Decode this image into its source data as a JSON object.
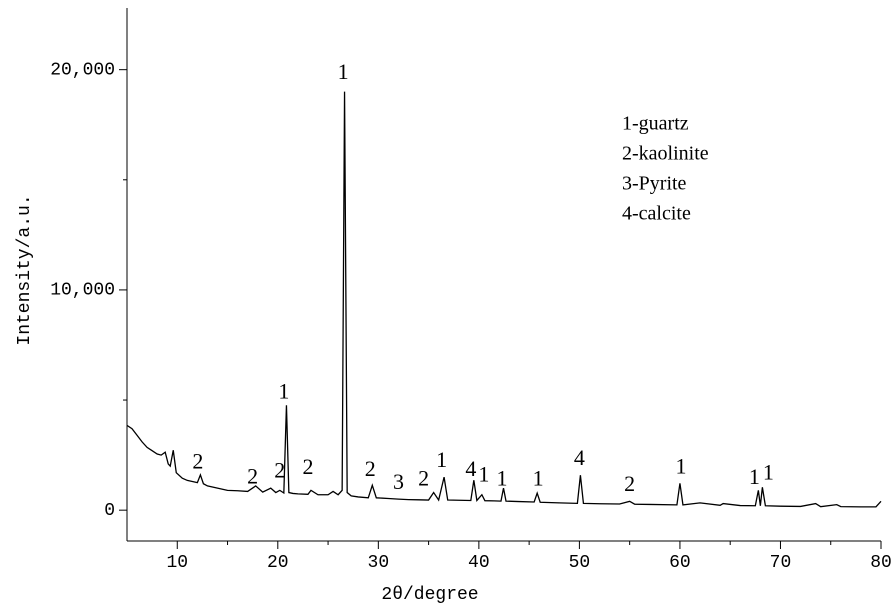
{
  "chart_data": {
    "type": "line",
    "xlabel": "2θ/degree",
    "ylabel": "Intensity/a.u.",
    "xlim": [
      5,
      80
    ],
    "ylim": [
      -1400,
      22800
    ],
    "xticks": [
      10,
      20,
      30,
      40,
      50,
      60,
      70,
      80
    ],
    "xminorticks": [
      15,
      25,
      35,
      45,
      55,
      65,
      75
    ],
    "yticks": [
      0,
      {
        "value": 10000,
        "label": "10,000"
      },
      {
        "value": 20000,
        "label": "20,000"
      }
    ],
    "yminorticks": [
      5000,
      15000
    ],
    "color": "#000000",
    "x": [
      5,
      5.5,
      6,
      6.5,
      7,
      7.5,
      8,
      8.4,
      8.8,
      9.1,
      9.3,
      9.6,
      9.9,
      10.5,
      11,
      11.5,
      12,
      12.3,
      12.6,
      13,
      14,
      15,
      16,
      17,
      17.8,
      18.5,
      19.3,
      19.8,
      20.2,
      20.6,
      20.86,
      21.1,
      21.5,
      22,
      23,
      23.3,
      24,
      25,
      25.5,
      26,
      26.4,
      26.64,
      26.9,
      27.3,
      28,
      29,
      29.4,
      29.8,
      31,
      32,
      33,
      34,
      35,
      35.5,
      36,
      36.54,
      36.9,
      38,
      39.2,
      39.5,
      39.8,
      40.3,
      40.6,
      41.5,
      42.2,
      42.45,
      42.7,
      44,
      45.5,
      45.8,
      46.1,
      48,
      49.8,
      50.1,
      50.4,
      52,
      54,
      55,
      55.5,
      57,
      59.7,
      60,
      60.3,
      62,
      64,
      64.3,
      66,
      67.5,
      67.8,
      68,
      68.2,
      68.5,
      70,
      72,
      73.5,
      74,
      75.6,
      76,
      78,
      79.5,
      80
    ],
    "y": [
      3850,
      3700,
      3400,
      3100,
      2850,
      2700,
      2550,
      2500,
      2630,
      2100,
      2000,
      2720,
      1700,
      1450,
      1350,
      1300,
      1250,
      1600,
      1200,
      1100,
      1000,
      900,
      880,
      850,
      1100,
      820,
      1000,
      800,
      900,
      780,
      4760,
      800,
      760,
      740,
      720,
      900,
      700,
      700,
      850,
      700,
      900,
      19000,
      800,
      650,
      600,
      560,
      1130,
      560,
      530,
      500,
      480,
      470,
      460,
      800,
      460,
      1500,
      460,
      450,
      440,
      1360,
      440,
      700,
      430,
      420,
      410,
      1000,
      410,
      390,
      370,
      770,
      360,
      330,
      310,
      1590,
      310,
      290,
      280,
      400,
      270,
      260,
      240,
      1220,
      240,
      330,
      220,
      300,
      210,
      200,
      900,
      200,
      1040,
      200,
      180,
      170,
      300,
      160,
      250,
      160,
      150,
      150,
      400
    ],
    "annotations": [
      {
        "text": "1",
        "x": 26.5,
        "y": 19800
      },
      {
        "text": "1",
        "x": 20.6,
        "y": 5300
      },
      {
        "text": "2",
        "x": 12.05,
        "y": 2130
      },
      {
        "text": "2",
        "x": 17.5,
        "y": 1450
      },
      {
        "text": "2",
        "x": 20.2,
        "y": 1720
      },
      {
        "text": "2",
        "x": 23.0,
        "y": 1860
      },
      {
        "text": "2",
        "x": 29.2,
        "y": 1770
      },
      {
        "text": "3",
        "x": 32.0,
        "y": 1180
      },
      {
        "text": "2",
        "x": 34.5,
        "y": 1360
      },
      {
        "text": "1",
        "x": 36.3,
        "y": 2180
      },
      {
        "text": "4",
        "x": 39.2,
        "y": 1770
      },
      {
        "text": "1",
        "x": 40.5,
        "y": 1540
      },
      {
        "text": "1",
        "x": 42.3,
        "y": 1360
      },
      {
        "text": "1",
        "x": 45.9,
        "y": 1360
      },
      {
        "text": "4",
        "x": 50.0,
        "y": 2270
      },
      {
        "text": "2",
        "x": 55.0,
        "y": 1090
      },
      {
        "text": "1",
        "x": 60.1,
        "y": 1900
      },
      {
        "text": "1",
        "x": 67.4,
        "y": 1410
      },
      {
        "text": "1",
        "x": 68.8,
        "y": 1630
      }
    ],
    "key": [
      "1-guartz",
      "2-kaolinite",
      "3-Pyrite",
      "4-calcite"
    ]
  }
}
